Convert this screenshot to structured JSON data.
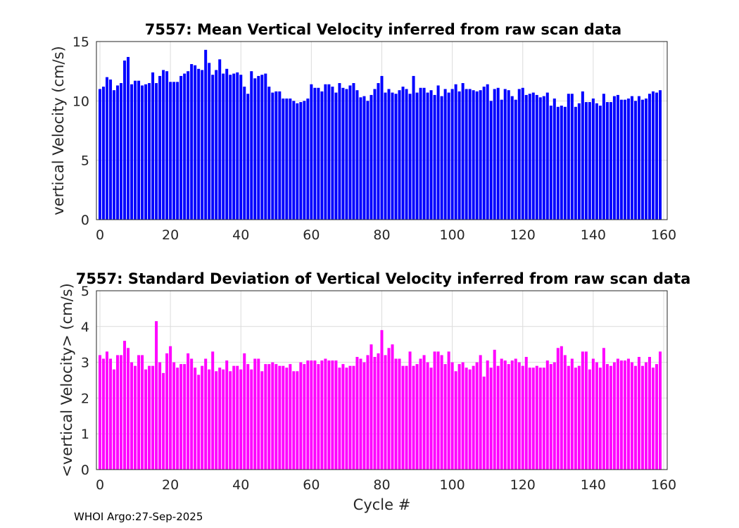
{
  "chart_data": [
    {
      "type": "bar",
      "title": "7557: Mean Vertical Velocity inferred from raw scan data",
      "xlabel": "",
      "ylabel": "vertical Velocity (cm/s)",
      "xlim": [
        -1,
        161
      ],
      "ylim": [
        0,
        15
      ],
      "xticks": [
        0,
        20,
        40,
        60,
        80,
        100,
        120,
        140,
        160
      ],
      "yticks": [
        0,
        5,
        10,
        15
      ],
      "grid": true,
      "color": "#0000ff",
      "x_start": 0,
      "values": [
        11.0,
        11.2,
        12.0,
        11.8,
        10.9,
        11.3,
        11.5,
        13.4,
        13.7,
        11.4,
        11.7,
        11.7,
        11.3,
        11.4,
        11.5,
        12.4,
        11.5,
        12.1,
        12.6,
        12.5,
        11.6,
        11.6,
        11.6,
        12.1,
        12.3,
        12.5,
        13.1,
        13.0,
        12.7,
        12.6,
        14.3,
        13.2,
        12.2,
        12.6,
        13.5,
        12.3,
        12.7,
        12.2,
        12.3,
        12.4,
        12.2,
        11.2,
        10.6,
        12.5,
        11.9,
        12.1,
        12.2,
        12.3,
        11.2,
        10.7,
        10.8,
        10.8,
        10.2,
        10.2,
        10.2,
        10.0,
        9.8,
        9.9,
        10.0,
        10.2,
        11.4,
        11.1,
        11.1,
        10.8,
        11.4,
        11.4,
        11.2,
        10.7,
        11.5,
        11.1,
        11.0,
        11.3,
        11.5,
        10.9,
        10.3,
        10.4,
        10.0,
        10.5,
        11.0,
        11.5,
        12.1,
        10.7,
        11.0,
        10.7,
        10.6,
        10.9,
        11.2,
        11.0,
        10.6,
        12.1,
        10.7,
        11.1,
        11.1,
        10.7,
        10.9,
        10.5,
        11.3,
        10.4,
        11.0,
        10.7,
        11.0,
        11.4,
        10.8,
        11.5,
        11.0,
        11.0,
        10.9,
        10.8,
        10.9,
        11.2,
        11.4,
        10.0,
        11.0,
        11.1,
        10.1,
        11.0,
        10.9,
        10.4,
        10.1,
        11.0,
        11.1,
        10.5,
        10.6,
        10.7,
        10.5,
        10.3,
        10.4,
        10.7,
        9.6,
        10.2,
        9.5,
        9.6,
        9.5,
        10.6,
        10.6,
        9.5,
        9.8,
        10.8,
        9.9,
        9.9,
        10.2,
        9.8,
        9.6,
        10.6,
        9.9,
        9.9,
        10.4,
        10.5,
        10.1,
        10.1,
        10.2,
        10.4,
        10.0,
        10.4,
        10.1,
        10.2,
        10.6,
        10.8,
        10.7,
        10.9
      ]
    },
    {
      "type": "bar",
      "title": "7557: Standard Deviation of Vertical Velocity inferred from raw scan data",
      "xlabel": "Cycle #",
      "ylabel": "<vertical Velocity> (cm/s)",
      "xlim": [
        -1,
        161
      ],
      "ylim": [
        0,
        5
      ],
      "xticks": [
        0,
        20,
        40,
        60,
        80,
        100,
        120,
        140,
        160
      ],
      "yticks": [
        0,
        1,
        2,
        3,
        4,
        5
      ],
      "grid": true,
      "color": "#ff00ff",
      "x_start": 0,
      "values": [
        3.2,
        3.1,
        3.3,
        3.1,
        2.8,
        3.2,
        3.2,
        3.6,
        3.4,
        3.0,
        2.9,
        3.2,
        3.2,
        2.8,
        2.9,
        2.9,
        4.15,
        3.0,
        2.7,
        3.25,
        3.45,
        3.0,
        2.85,
        2.95,
        2.95,
        3.25,
        3.1,
        2.85,
        2.65,
        2.9,
        3.1,
        2.8,
        3.3,
        2.75,
        2.85,
        2.8,
        3.05,
        2.75,
        2.9,
        2.9,
        2.8,
        3.25,
        2.95,
        2.8,
        3.1,
        3.1,
        2.75,
        2.95,
        2.95,
        3.0,
        2.95,
        2.9,
        2.9,
        2.85,
        2.95,
        2.75,
        2.75,
        3.0,
        2.95,
        3.05,
        3.05,
        3.05,
        2.95,
        3.05,
        3.1,
        3.05,
        3.05,
        3.05,
        2.85,
        2.95,
        2.85,
        2.9,
        2.9,
        3.15,
        3.1,
        3.0,
        3.2,
        3.5,
        3.15,
        3.25,
        3.9,
        3.2,
        3.4,
        3.5,
        3.1,
        3.1,
        2.9,
        2.9,
        3.3,
        2.9,
        2.95,
        3.1,
        3.2,
        3.0,
        2.85,
        3.3,
        3.3,
        3.2,
        2.95,
        3.3,
        3.0,
        2.75,
        2.95,
        3.0,
        2.85,
        2.8,
        2.9,
        3.0,
        3.2,
        2.6,
        3.05,
        2.85,
        3.35,
        2.9,
        3.1,
        3.05,
        2.95,
        3.05,
        3.1,
        3.0,
        2.9,
        3.15,
        2.85,
        2.85,
        2.9,
        2.85,
        2.85,
        3.05,
        2.95,
        3.0,
        3.4,
        3.45,
        3.2,
        2.9,
        3.1,
        2.85,
        2.9,
        3.3,
        3.3,
        2.8,
        3.1,
        3.0,
        2.85,
        3.4,
        2.95,
        2.9,
        3.0,
        3.1,
        3.05,
        3.05,
        3.1,
        3.0,
        2.9,
        3.15,
        2.9,
        3.0,
        3.15,
        2.85,
        2.95,
        3.3
      ]
    }
  ],
  "footer": "WHOI Argo:27-Sep-2025"
}
